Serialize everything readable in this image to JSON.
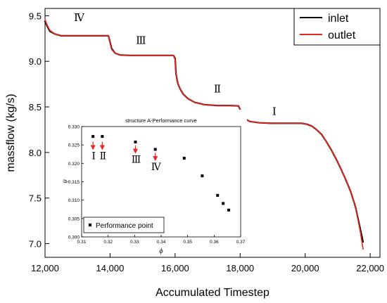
{
  "chart_data": [
    {
      "type": "line",
      "title": "",
      "xlabel": "Accumulated Timestep",
      "ylabel": "massflow (kg/s)",
      "xlim": [
        12000,
        22300
      ],
      "ylim": [
        6.85,
        9.58
      ],
      "xticks": [
        12000,
        14000,
        16000,
        18000,
        20000,
        22000
      ],
      "xtick_labels": [
        "12,000",
        "14,000",
        "16,000",
        "18,000",
        "20,000",
        "22,000"
      ],
      "yticks": [
        7.0,
        7.5,
        8.0,
        8.5,
        9.0,
        9.5
      ],
      "ytick_labels": [
        "7.0",
        "7.5",
        "8.0",
        "8.5",
        "9.0",
        "9.5"
      ],
      "legend_position": "top-right",
      "grid": false,
      "series": [
        {
          "name": "inlet",
          "color": "#000000",
          "x": [
            12000,
            12060,
            12150,
            12300,
            12500,
            13000,
            13500,
            13950,
            14000,
            14050,
            14150,
            14300,
            14600,
            15000,
            15500,
            15950,
            16000,
            16030,
            16080,
            16150,
            16250,
            16400,
            16600,
            16900,
            17300,
            17700,
            17950,
            18000,
            18050,
            18150,
            18300,
            18600,
            19000,
            19500,
            19900,
            20050,
            20200,
            20350,
            20500,
            20650,
            20800,
            20950,
            21100,
            21250,
            21400,
            21550,
            21700,
            21780
          ],
          "y": [
            9.44,
            9.39,
            9.33,
            9.3,
            9.28,
            9.28,
            9.28,
            9.28,
            9.21,
            9.14,
            9.09,
            9.07,
            9.065,
            9.065,
            9.065,
            9.065,
            9.03,
            8.86,
            8.76,
            8.7,
            8.64,
            8.59,
            8.55,
            8.525,
            8.515,
            8.515,
            8.51,
            8.47,
            8.42,
            8.37,
            8.34,
            8.325,
            8.32,
            8.32,
            8.32,
            8.31,
            8.29,
            8.25,
            8.2,
            8.12,
            8.03,
            7.93,
            7.82,
            7.7,
            7.57,
            7.4,
            7.15,
            7.02
          ]
        },
        {
          "name": "outlet",
          "color": "#e8251f",
          "x": [
            12000,
            12060,
            12150,
            12300,
            12500,
            13000,
            13500,
            13950,
            14000,
            14050,
            14150,
            14300,
            14600,
            15000,
            15500,
            15950,
            16000,
            16030,
            16080,
            16150,
            16250,
            16400,
            16600,
            16900,
            17300,
            17700,
            17950,
            18000,
            18050,
            18150,
            18300,
            18600,
            19000,
            19500,
            19900,
            20050,
            20200,
            20350,
            20500,
            20650,
            20800,
            20950,
            21100,
            21250,
            21400,
            21550,
            21700,
            21780
          ],
          "y": [
            9.46,
            9.4,
            9.34,
            9.3,
            9.28,
            9.28,
            9.28,
            9.28,
            9.2,
            9.13,
            9.09,
            9.07,
            9.065,
            9.065,
            9.065,
            9.065,
            9.02,
            8.85,
            8.76,
            8.7,
            8.64,
            8.59,
            8.55,
            8.525,
            8.515,
            8.515,
            8.51,
            8.47,
            8.42,
            8.37,
            8.34,
            8.325,
            8.32,
            8.32,
            8.32,
            8.31,
            8.29,
            8.25,
            8.2,
            8.12,
            8.03,
            7.93,
            7.82,
            7.7,
            7.57,
            7.4,
            7.12,
            6.94
          ]
        }
      ],
      "annotations": [
        {
          "text": "Ⅳ",
          "x": 13050,
          "y": 9.44
        },
        {
          "text": "Ⅲ",
          "x": 14950,
          "y": 9.19
        },
        {
          "text": "Ⅱ",
          "x": 17300,
          "y": 8.66
        },
        {
          "text": "Ⅰ",
          "x": 19050,
          "y": 8.41
        }
      ]
    },
    {
      "type": "scatter",
      "title": "structure A-Performance curve",
      "xlabel": "ϕ",
      "ylabel": "ψ",
      "xlim": [
        0.31,
        0.37
      ],
      "ylim": [
        0.3,
        0.33
      ],
      "xticks": [
        0.31,
        0.32,
        0.33,
        0.34,
        0.35,
        0.36,
        0.37
      ],
      "xtick_labels": [
        "0.31",
        "0.32",
        "0.33",
        "0.34",
        "0.35",
        "0.36",
        "0.37"
      ],
      "yticks": [
        0.3,
        0.305,
        0.31,
        0.315,
        0.32,
        0.325,
        0.33
      ],
      "ytick_labels": [
        "0.300",
        "0.305",
        "0.310",
        "0.315",
        "0.320",
        "0.325",
        "0.330"
      ],
      "legend_position": "bottom-left",
      "series": [
        {
          "name": "Performance point",
          "color": "#000000",
          "x": [
            0.3143,
            0.3178,
            0.3303,
            0.3378,
            0.3487,
            0.3555,
            0.3613,
            0.3634,
            0.3655
          ],
          "y": [
            0.3273,
            0.3273,
            0.3258,
            0.3238,
            0.3214,
            0.3166,
            0.3113,
            0.3091,
            0.3073
          ]
        }
      ],
      "annotations": [
        {
          "text": "Ⅰ",
          "x": 0.3143,
          "y": 0.3238
        },
        {
          "text": "Ⅱ",
          "x": 0.3178,
          "y": 0.3238
        },
        {
          "text": "Ⅲ",
          "x": 0.3303,
          "y": 0.3228
        },
        {
          "text": "Ⅳ",
          "x": 0.3378,
          "y": 0.3208
        }
      ],
      "arrow_color": "#e8251f"
    }
  ]
}
